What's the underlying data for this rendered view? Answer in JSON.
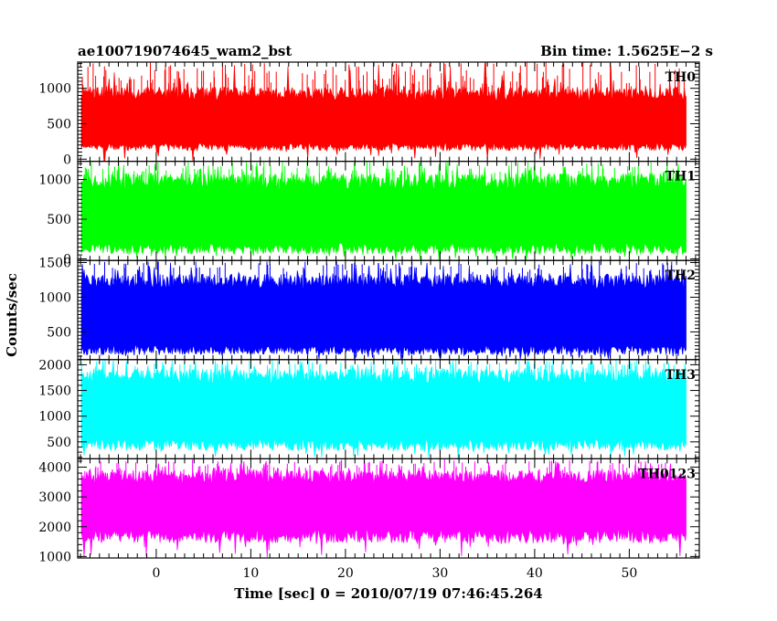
{
  "header": {
    "title": "ae100719074645_wam2_bst",
    "bin_time": "Bin time: 1.5625E−2 s"
  },
  "chart_data": {
    "type": "line",
    "title": "ae100719074645_wam2_bst",
    "xlabel": "Time [sec] 0 = 2010/07/19 07:46:45.264",
    "ylabel": "Counts/sec",
    "xlim": [
      -8.3,
      57.4
    ],
    "x_ticks": [
      0,
      10,
      20,
      30,
      40,
      50
    ],
    "x_tick_labels": [
      "0",
      "10",
      "20",
      "30",
      "40",
      "50"
    ],
    "x_range_data": [
      -7.9,
      56.0
    ],
    "bin_time": 0.015625,
    "panels": [
      {
        "label": "TH0",
        "color": "#ff0000",
        "ylim": [
          -30,
          1370
        ],
        "ticks": [
          0,
          500,
          1000
        ],
        "tick_labels": [
          "0",
          "500",
          "1000"
        ],
        "baseline": 520,
        "low_range": [
          120,
          230
        ],
        "high_range": [
          830,
          1020
        ],
        "rare_max": 1370
      },
      {
        "label": "TH1",
        "color": "#00ff00",
        "ylim": [
          -20,
          1230
        ],
        "ticks": [
          0,
          500,
          1000
        ],
        "tick_labels": [
          "0",
          "500",
          "1000"
        ],
        "baseline": 560,
        "low_range": [
          60,
          200
        ],
        "high_range": [
          880,
          1080
        ],
        "rare_max": 1230
      },
      {
        "label": "TH2",
        "color": "#0000ff",
        "ylim": [
          100,
          1530
        ],
        "ticks": [
          500,
          1000,
          1500
        ],
        "tick_labels": [
          "500",
          "1000",
          "1500"
        ],
        "baseline": 720,
        "low_range": [
          170,
          310
        ],
        "high_range": [
          1120,
          1330
        ],
        "rare_max": 1520
      },
      {
        "label": "TH3",
        "color": "#00ffff",
        "ylim": [
          170,
          2100
        ],
        "ticks": [
          500,
          1000,
          1500,
          2000
        ],
        "tick_labels": [
          "500",
          "1000",
          "1500",
          "2000"
        ],
        "baseline": 1060,
        "low_range": [
          330,
          560
        ],
        "high_range": [
          1640,
          1920
        ],
        "rare_max": 2100
      },
      {
        "label": "TH0123",
        "color": "#ff00ff",
        "ylim": [
          950,
          4280
        ],
        "ticks": [
          1000,
          2000,
          3000,
          4000
        ],
        "tick_labels": [
          "1000",
          "2000",
          "3000",
          "4000"
        ],
        "baseline": 2600,
        "low_range": [
          1450,
          1900
        ],
        "high_range": [
          3450,
          3900
        ],
        "rare_max": 4260
      }
    ]
  }
}
